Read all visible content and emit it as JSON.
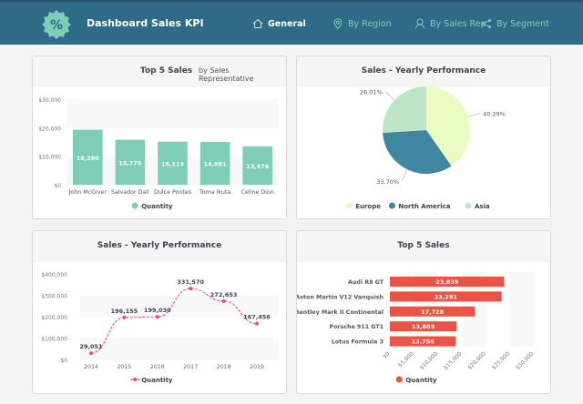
{
  "header": {
    "title": "Dashboard Sales KPI",
    "logo_icon": "percent-badge-icon",
    "nav": [
      {
        "label": "General",
        "icon": "home-icon",
        "active": true
      },
      {
        "label": "By Region",
        "icon": "location-pin-icon"
      },
      {
        "label": "By Sales Rep",
        "icon": "user-icon"
      },
      {
        "label": "By Segment",
        "icon": "share-nodes-icon"
      }
    ]
  },
  "colors": {
    "header": "#2f6a86",
    "teal": "#7ecdb6",
    "pink": "#ef4a7e",
    "red": "#ec5246",
    "europe": "#eafcc0",
    "north_america": "#3f87a0",
    "asia": "#bde5c6"
  },
  "cards": {
    "rep": {
      "title": "Top 5 Sales",
      "subtitle": "by Sales Representative"
    },
    "region": {
      "title": "Sales - Yearly Performance"
    },
    "yearly": {
      "title": "Sales - Yearly Performance"
    },
    "cars": {
      "title": "Top 5 Sales"
    }
  },
  "chart_data": [
    {
      "type": "bar",
      "categories": [
        "John McGiver",
        "Salvador Dali",
        "Dulce Pontes",
        "Toma Ikuta",
        "Celine Dion"
      ],
      "series": [
        {
          "name": "Quantity",
          "values": [
            19280,
            15775,
            15113,
            14981,
            13476
          ]
        }
      ],
      "data_labels": [
        "19,280",
        "15,775",
        "15,113",
        "14,981",
        "13,476"
      ],
      "yticks": [
        "$0",
        "$10,000",
        "$20,000",
        "$30,000"
      ],
      "ylim": [
        0,
        30000
      ],
      "legend": "bottom"
    },
    {
      "type": "pie",
      "categories": [
        "Europe",
        "North America",
        "Asia"
      ],
      "values": [
        40.29,
        33.7,
        26.01
      ],
      "data_labels": [
        "40.29%",
        "33.70%",
        "26.01%"
      ],
      "legend": "bottom"
    },
    {
      "type": "line",
      "categories": [
        "2014",
        "2015",
        "2016",
        "2017",
        "2018",
        "2019"
      ],
      "series": [
        {
          "name": "Quantity",
          "values": [
            29051,
            196155,
            199030,
            331570,
            272653,
            167456
          ]
        }
      ],
      "data_labels": [
        "29,051",
        "196,155",
        "199,030",
        "331,570",
        "272,653",
        "167,456"
      ],
      "yticks": [
        "$0",
        "$100,000",
        "$200,000",
        "$300,000",
        "$400,000"
      ],
      "ylim": [
        0,
        400000
      ],
      "legend": "bottom"
    },
    {
      "type": "bar",
      "orientation": "horizontal",
      "categories": [
        "Audi R8 GT",
        "Aston Martin V12 Vanquish",
        "Bentley Mark II Continental",
        "Porsche 911 GT1",
        "Lotus Formula 3"
      ],
      "series": [
        {
          "name": "Quantity",
          "values": [
            23839,
            23291,
            17728,
            13889,
            13756
          ]
        }
      ],
      "data_labels": [
        "23,839",
        "23,291",
        "17,728",
        "13,889",
        "13,756"
      ],
      "xticks": [
        "$0",
        "$5,000",
        "$10,000",
        "$15,000",
        "$20,000",
        "$25,000",
        "$30,000"
      ],
      "xlim": [
        0,
        30000
      ],
      "legend": "bottom"
    }
  ]
}
